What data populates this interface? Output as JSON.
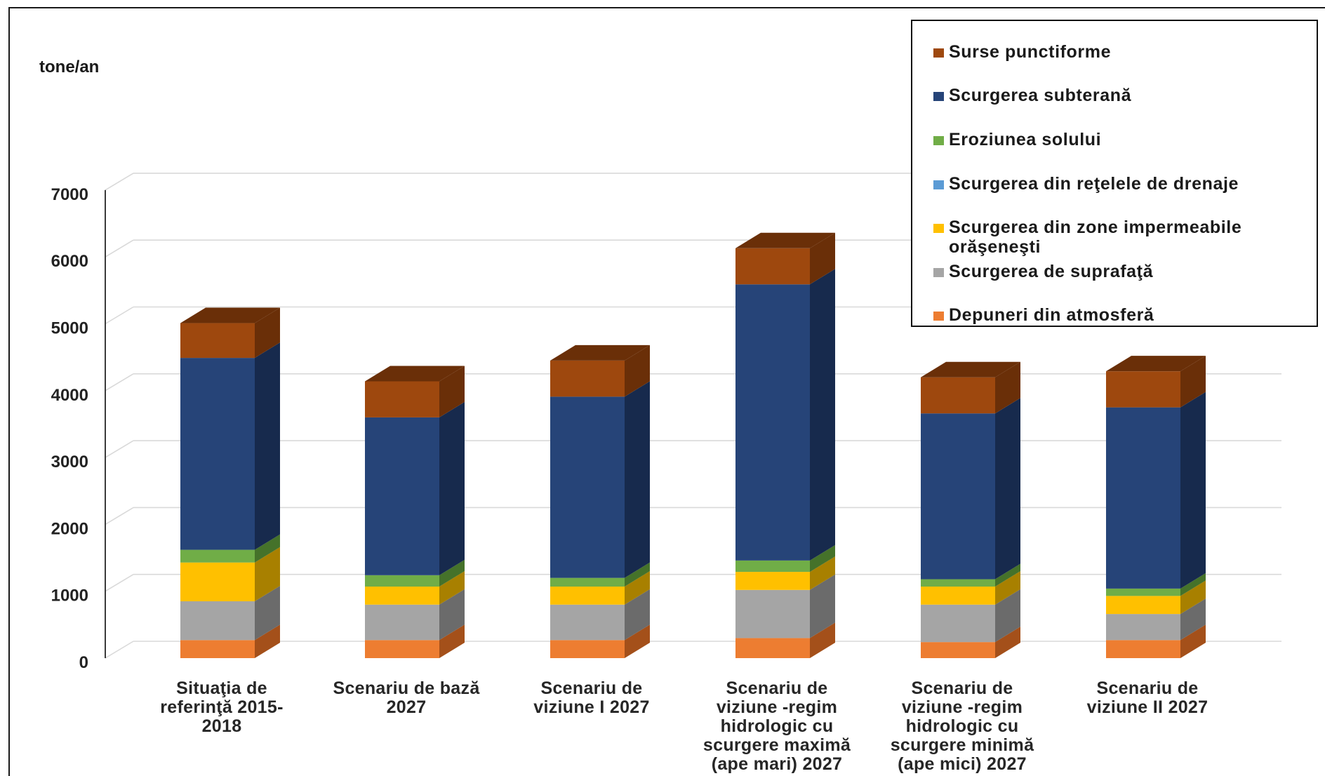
{
  "chart_data": {
    "type": "bar",
    "stacked": true,
    "three_d": true,
    "ylabel": "tone/an",
    "ylim": [
      0,
      7000
    ],
    "yticks": [
      0,
      1000,
      2000,
      3000,
      4000,
      5000,
      6000,
      7000
    ],
    "grid": true,
    "legend_position": "top-right",
    "categories": [
      "Situaţia de referinţă  2015-2018",
      "Scenariu de bază 2027",
      "Scenariu de viziune I 2027",
      "Scenariu de viziune -regim hidrologic cu scurgere maximă (ape mari) 2027",
      "Scenariu de viziune -regim hidrologic cu scurgere minimă (ape mici) 2027",
      "Scenariu de viziune II 2027"
    ],
    "series": [
      {
        "name": "Depuneri din atmosferă",
        "color": "#ED7D31",
        "shade": "#A4501A",
        "values": [
          270,
          270,
          270,
          300,
          240,
          270
        ]
      },
      {
        "name": "Scurgerea de suprafaţă",
        "color": "#A5A5A5",
        "shade": "#6B6B6B",
        "values": [
          580,
          530,
          530,
          720,
          560,
          390
        ]
      },
      {
        "name": "Scurgerea din zone impermeabile orăşeneşti",
        "color": "#FFC000",
        "shade": "#A88000",
        "values": [
          580,
          270,
          270,
          270,
          270,
          270
        ]
      },
      {
        "name": "Scurgerea din reţelele de drenaje",
        "color": "#5B9BD5",
        "shade": "#3B6B99",
        "values": [
          0,
          0,
          0,
          0,
          0,
          0
        ]
      },
      {
        "name": "Eroziunea solului",
        "color": "#70AD47",
        "shade": "#45722A",
        "values": [
          190,
          170,
          130,
          170,
          110,
          110
        ]
      },
      {
        "name": "Scurgerea subterană",
        "color": "#264478",
        "shade": "#172A4D",
        "values": [
          2870,
          2360,
          2710,
          4130,
          2480,
          2710
        ]
      },
      {
        "name": "Surse punctiforme",
        "color": "#9E480E",
        "shade": "#6A2F08",
        "values": [
          520,
          540,
          540,
          540,
          540,
          540
        ]
      }
    ]
  },
  "legend": [
    {
      "label": "Surse punctiforme",
      "color": "#9E480E"
    },
    {
      "label": "Scurgerea subterană",
      "color": "#264478"
    },
    {
      "label": "Eroziunea solului",
      "color": "#70AD47"
    },
    {
      "label": "Scurgerea din reţelele de drenaje",
      "color": "#5B9BD5"
    },
    {
      "label": "Scurgerea din zone impermeabile orăşeneşti",
      "color": "#FFC000"
    },
    {
      "label": "Scurgerea de suprafaţă",
      "color": "#A5A5A5"
    },
    {
      "label": "Depuneri din atmosferă",
      "color": "#ED7D31"
    }
  ],
  "axis": {
    "ylabel": "tone/an",
    "category_lines": [
      [
        "Situaţia de",
        "referinţă  2015-",
        "2018"
      ],
      [
        "Scenariu de bază",
        "2027"
      ],
      [
        "Scenariu de",
        "viziune I 2027"
      ],
      [
        "Scenariu de",
        "viziune -regim",
        "hidrologic cu",
        "scurgere maximă",
        "(ape mari) 2027"
      ],
      [
        "Scenariu de",
        "viziune -regim",
        "hidrologic cu",
        "scurgere minimă",
        "(ape mici) 2027"
      ],
      [
        "Scenariu de",
        "viziune II 2027"
      ]
    ]
  }
}
